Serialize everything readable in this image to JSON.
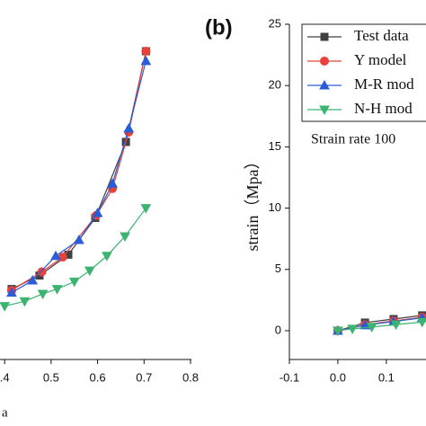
{
  "chart_data": [
    {
      "type": "line",
      "xlabel": "a",
      "xlim": [
        0.39,
        0.8
      ],
      "ylim": [
        -2.35,
        25
      ],
      "xticks": [
        {
          "value": 0.4,
          "label": ".4"
        },
        0.5,
        0.6,
        0.7,
        0.8
      ],
      "series": [
        {
          "color": "#404040",
          "marker": "square",
          "x": [
            0.415,
            0.475,
            0.537,
            0.595,
            0.661,
            0.704
          ],
          "values": [
            3.4,
            4.5,
            6.2,
            9.2,
            15.4,
            22.8
          ]
        },
        {
          "color": "#e8413c",
          "marker": "circle",
          "x": [
            0.415,
            0.48,
            0.525,
            0.597,
            0.632,
            0.667,
            0.704
          ],
          "values": [
            3.3,
            4.8,
            6.0,
            9.4,
            11.6,
            16.2,
            22.8
          ]
        },
        {
          "color": "#2a5cd8",
          "marker": "triangle",
          "x": [
            0.415,
            0.46,
            0.51,
            0.56,
            0.6,
            0.632,
            0.667,
            0.704
          ],
          "values": [
            3.1,
            4.1,
            6.1,
            7.4,
            9.6,
            12.0,
            16.5,
            22.0
          ]
        },
        {
          "color": "#3cb371",
          "marker": "triangle-down",
          "x": [
            0.4,
            0.443,
            0.482,
            0.513,
            0.55,
            0.583,
            0.62,
            0.659,
            0.704
          ],
          "values": [
            2.0,
            2.4,
            3.0,
            3.4,
            4.0,
            4.9,
            6.1,
            7.7,
            10.0
          ]
        }
      ]
    },
    {
      "type": "line",
      "title": "(b)",
      "ylabel": "strain（Mpa）",
      "annotation": "Strain rate 100",
      "xlim": [
        -0.1,
        0.18
      ],
      "ylim": [
        -2.35,
        25
      ],
      "xticks": [
        -0.1,
        {
          "value": 0,
          "label": "0.0"
        },
        0.1
      ],
      "yticks": [
        0,
        5,
        10,
        15,
        20,
        25
      ],
      "series": [
        {
          "name": "Test data",
          "color": "#404040",
          "marker": "square",
          "x": [
            0,
            0.056,
            0.115,
            0.174
          ],
          "values": [
            0,
            0.66,
            0.95,
            1.25
          ]
        },
        {
          "name": "Y model",
          "color": "#e8413c",
          "marker": "circle",
          "x": [
            0,
            0.056,
            0.115,
            0.174
          ],
          "values": [
            0,
            0.5,
            0.8,
            1.1
          ]
        },
        {
          "name": "M-R mod",
          "color": "#2a5cd8",
          "marker": "triangle",
          "x": [
            0,
            0.056,
            0.115,
            0.174
          ],
          "values": [
            0,
            0.45,
            0.75,
            1.05
          ]
        },
        {
          "name": "N-H mod",
          "color": "#3cb371",
          "marker": "triangle-down",
          "x": [
            0,
            0.03,
            0.07,
            0.12,
            0.174
          ],
          "values": [
            0,
            0.15,
            0.3,
            0.5,
            0.7
          ]
        }
      ]
    }
  ]
}
